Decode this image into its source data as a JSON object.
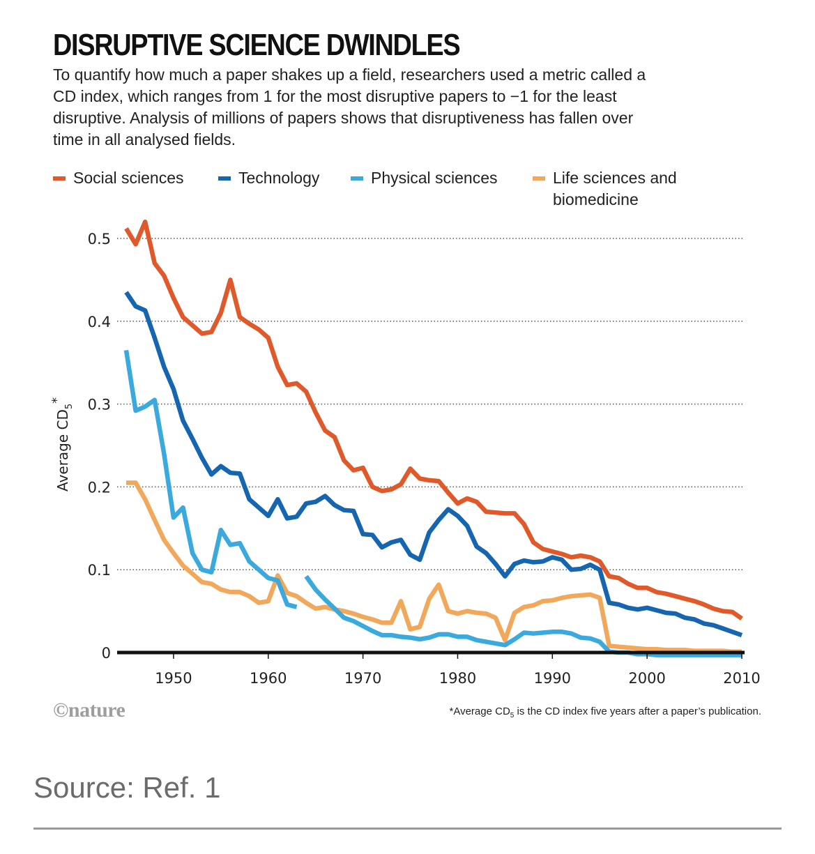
{
  "header": {
    "title": "DISRUPTIVE SCIENCE DWINDLES",
    "subtitle": "To quantify how much a paper shakes up a field, researchers used a metric called a CD index, which ranges from 1 for the most disruptive papers to −1 for the least disruptive. Analysis of millions of papers shows that disruptiveness has fallen over time in all analysed fields."
  },
  "footer": {
    "credit": "©nature",
    "footnote_prefix": "*Average CD",
    "footnote_sub": "5",
    "footnote_suffix": " is the CD index five years after a paper’s publication.",
    "source": "Source: Ref. 1"
  },
  "chart_data": {
    "type": "line",
    "title": "DISRUPTIVE SCIENCE DWINDLES",
    "xlabel": "",
    "ylabel": "Average CD",
    "ylabel_sub": "5",
    "ylabel_mark": "*",
    "xlim": [
      1945,
      2010
    ],
    "ylim": [
      0,
      0.5
    ],
    "xticks": [
      1950,
      1960,
      1970,
      1980,
      1990,
      2000,
      2010
    ],
    "yticks": [
      0,
      0.1,
      0.2,
      0.3,
      0.4,
      0.5
    ],
    "ytick_labels": [
      "0",
      "0.1",
      "0.2",
      "0.3",
      "0.4",
      "0.5"
    ],
    "grid": "horizontal dotted",
    "legend_position": "top",
    "series": [
      {
        "name": "Social sciences",
        "color": "#e0592a",
        "x": [
          1945,
          1946,
          1947,
          1948,
          1949,
          1950,
          1951,
          1952,
          1953,
          1954,
          1955,
          1956,
          1957,
          1958,
          1959,
          1960,
          1961,
          1962,
          1963,
          1964,
          1965,
          1966,
          1967,
          1968,
          1969,
          1970,
          1971,
          1972,
          1973,
          1974,
          1975,
          1976,
          1977,
          1978,
          1979,
          1980,
          1981,
          1982,
          1983,
          1984,
          1985,
          1986,
          1987,
          1988,
          1989,
          1990,
          1991,
          1992,
          1993,
          1994,
          1995,
          1996,
          1997,
          1998,
          1999,
          2000,
          2001,
          2002,
          2003,
          2004,
          2005,
          2006,
          2007,
          2008,
          2009,
          2010
        ],
        "values": [
          0.512,
          0.493,
          0.52,
          0.47,
          0.455,
          0.428,
          0.405,
          0.395,
          0.385,
          0.387,
          0.41,
          0.45,
          0.405,
          0.397,
          0.39,
          0.38,
          0.345,
          0.323,
          0.325,
          0.315,
          0.29,
          0.268,
          0.26,
          0.232,
          0.22,
          0.223,
          0.2,
          0.195,
          0.197,
          0.203,
          0.222,
          0.21,
          0.208,
          0.207,
          0.193,
          0.18,
          0.186,
          0.182,
          0.17,
          0.169,
          0.168,
          0.168,
          0.155,
          0.133,
          0.125,
          0.122,
          0.119,
          0.115,
          0.117,
          0.115,
          0.11,
          0.092,
          0.09,
          0.083,
          0.078,
          0.078,
          0.073,
          0.071,
          0.068,
          0.065,
          0.062,
          0.058,
          0.053,
          0.05,
          0.049,
          0.041
        ]
      },
      {
        "name": "Technology",
        "color": "#1565b0",
        "x": [
          1945,
          1946,
          1947,
          1948,
          1949,
          1950,
          1951,
          1952,
          1953,
          1954,
          1955,
          1956,
          1957,
          1958,
          1959,
          1960,
          1961,
          1962,
          1963,
          1964,
          1965,
          1966,
          1967,
          1968,
          1969,
          1970,
          1971,
          1972,
          1973,
          1974,
          1975,
          1976,
          1977,
          1978,
          1979,
          1980,
          1981,
          1982,
          1983,
          1984,
          1985,
          1986,
          1987,
          1988,
          1989,
          1990,
          1991,
          1992,
          1993,
          1994,
          1995,
          1996,
          1997,
          1998,
          1999,
          2000,
          2001,
          2002,
          2003,
          2004,
          2005,
          2006,
          2007,
          2008,
          2009,
          2010
        ],
        "values": [
          0.435,
          0.418,
          0.413,
          0.38,
          0.345,
          0.318,
          0.28,
          0.258,
          0.235,
          0.215,
          0.225,
          0.217,
          0.216,
          0.185,
          0.175,
          0.165,
          0.185,
          0.162,
          0.164,
          0.18,
          0.182,
          0.189,
          0.178,
          0.172,
          0.171,
          0.143,
          0.142,
          0.127,
          0.133,
          0.136,
          0.118,
          0.112,
          0.145,
          0.16,
          0.173,
          0.165,
          0.153,
          0.128,
          0.12,
          0.107,
          0.092,
          0.107,
          0.111,
          0.109,
          0.11,
          0.115,
          0.112,
          0.1,
          0.101,
          0.106,
          0.1,
          0.06,
          0.058,
          0.054,
          0.052,
          0.054,
          0.051,
          0.048,
          0.047,
          0.042,
          0.04,
          0.035,
          0.033,
          0.029,
          0.025,
          0.021
        ]
      },
      {
        "name": "Physical sciences",
        "color": "#3aa9de",
        "x": [
          1945,
          1946,
          1947,
          1948,
          1949,
          1950,
          1951,
          1952,
          1953,
          1954,
          1955,
          1956,
          1957,
          1958,
          1959,
          1960,
          1961,
          1962,
          1963,
          null,
          1964,
          1965,
          1966,
          1967,
          1968,
          1969,
          1970,
          1971,
          1972,
          1973,
          1974,
          1975,
          1976,
          1977,
          1978,
          1979,
          1980,
          1981,
          1982,
          1983,
          1984,
          1985,
          1986,
          1987,
          1988,
          1989,
          1990,
          1991,
          1992,
          1993,
          1994,
          1995,
          1996,
          1997,
          1998,
          1999,
          2000,
          2001,
          2002,
          2003,
          2004,
          2005,
          2006,
          2007,
          2008,
          2009,
          2010
        ],
        "values": [
          0.365,
          0.292,
          0.297,
          0.305,
          0.24,
          0.163,
          0.175,
          0.12,
          0.1,
          0.097,
          0.148,
          0.13,
          0.132,
          0.11,
          0.1,
          0.09,
          0.087,
          0.058,
          0.055,
          null,
          0.092,
          0.076,
          0.064,
          0.053,
          0.042,
          0.038,
          0.032,
          0.026,
          0.021,
          0.021,
          0.019,
          0.018,
          0.016,
          0.018,
          0.022,
          0.022,
          0.019,
          0.019,
          0.015,
          0.013,
          0.011,
          0.009,
          0.016,
          0.024,
          0.023,
          0.024,
          0.025,
          0.025,
          0.023,
          0.018,
          0.017,
          0.013,
          0.001,
          0.0,
          0.0,
          -0.002,
          -0.002,
          -0.003,
          -0.003,
          -0.003,
          -0.003,
          -0.003,
          -0.003,
          -0.003,
          -0.003,
          -0.003,
          -0.003
        ]
      },
      {
        "name": "Life sciences and biomedicine",
        "color": "#f2a85b",
        "x": [
          1945,
          1946,
          1947,
          1948,
          1949,
          1950,
          1951,
          1952,
          1953,
          1954,
          1955,
          1956,
          1957,
          1958,
          1959,
          1960,
          1961,
          1962,
          1963,
          1964,
          1965,
          1966,
          1967,
          1968,
          1969,
          1970,
          1971,
          1972,
          1973,
          1974,
          1975,
          1976,
          1977,
          1978,
          1979,
          1980,
          1981,
          1982,
          1983,
          1984,
          1985,
          1986,
          1987,
          1988,
          1989,
          1990,
          1991,
          1992,
          1993,
          1994,
          1995,
          1996,
          1997,
          1998,
          1999,
          2000,
          2001,
          2002,
          2003,
          2004,
          2005,
          2006,
          2007,
          2008,
          2009,
          2010
        ],
        "values": [
          0.205,
          0.205,
          0.185,
          0.16,
          0.136,
          0.12,
          0.105,
          0.095,
          0.085,
          0.083,
          0.076,
          0.073,
          0.073,
          0.068,
          0.06,
          0.062,
          0.093,
          0.072,
          0.068,
          0.06,
          0.053,
          0.055,
          0.052,
          0.05,
          0.047,
          0.043,
          0.04,
          0.036,
          0.036,
          0.062,
          0.028,
          0.031,
          0.065,
          0.082,
          0.05,
          0.047,
          0.05,
          0.048,
          0.047,
          0.042,
          0.015,
          0.048,
          0.055,
          0.057,
          0.062,
          0.063,
          0.066,
          0.068,
          0.069,
          0.07,
          0.066,
          0.008,
          0.007,
          0.006,
          0.005,
          0.004,
          0.004,
          0.003,
          0.003,
          0.003,
          0.002,
          0.002,
          0.002,
          0.002,
          0.001,
          0.001
        ]
      }
    ]
  }
}
